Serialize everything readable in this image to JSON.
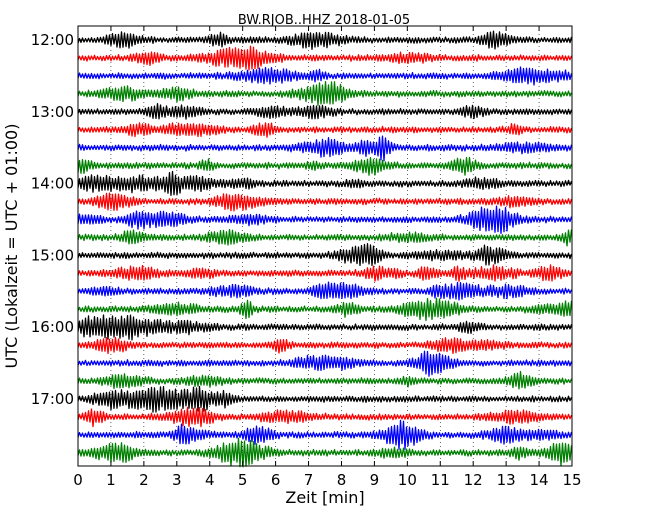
{
  "chart_data": {
    "type": "line",
    "title": "BW.RJOB..HHZ 2018-01-05",
    "xlabel": "Zeit  [min]",
    "ylabel": "UTC (Lokalzeit = UTC + 01:00)",
    "xlim": [
      0,
      15
    ],
    "x_ticks": [
      "0",
      "1",
      "2",
      "3",
      "4",
      "5",
      "6",
      "7",
      "8",
      "9",
      "10",
      "11",
      "12",
      "13",
      "14",
      "15"
    ],
    "y_tick_labels": [
      "12:00",
      "13:00",
      "14:00",
      "15:00",
      "16:00",
      "17:00"
    ],
    "grid": true,
    "trace_colors": [
      "#000000",
      "#ff0000",
      "#0000ff",
      "#008000"
    ],
    "traces": [
      {
        "start": "12:00"
      },
      {
        "start": "12:15"
      },
      {
        "start": "12:30"
      },
      {
        "start": "12:45"
      },
      {
        "start": "13:00"
      },
      {
        "start": "13:15"
      },
      {
        "start": "13:30"
      },
      {
        "start": "13:45"
      },
      {
        "start": "14:00"
      },
      {
        "start": "14:15"
      },
      {
        "start": "14:30"
      },
      {
        "start": "14:45"
      },
      {
        "start": "15:00"
      },
      {
        "start": "15:15"
      },
      {
        "start": "15:30"
      },
      {
        "start": "15:45"
      },
      {
        "start": "16:00"
      },
      {
        "start": "16:15"
      },
      {
        "start": "16:30"
      },
      {
        "start": "16:45"
      },
      {
        "start": "17:00"
      },
      {
        "start": "17:15"
      },
      {
        "start": "17:30"
      },
      {
        "start": "17:45"
      }
    ]
  }
}
